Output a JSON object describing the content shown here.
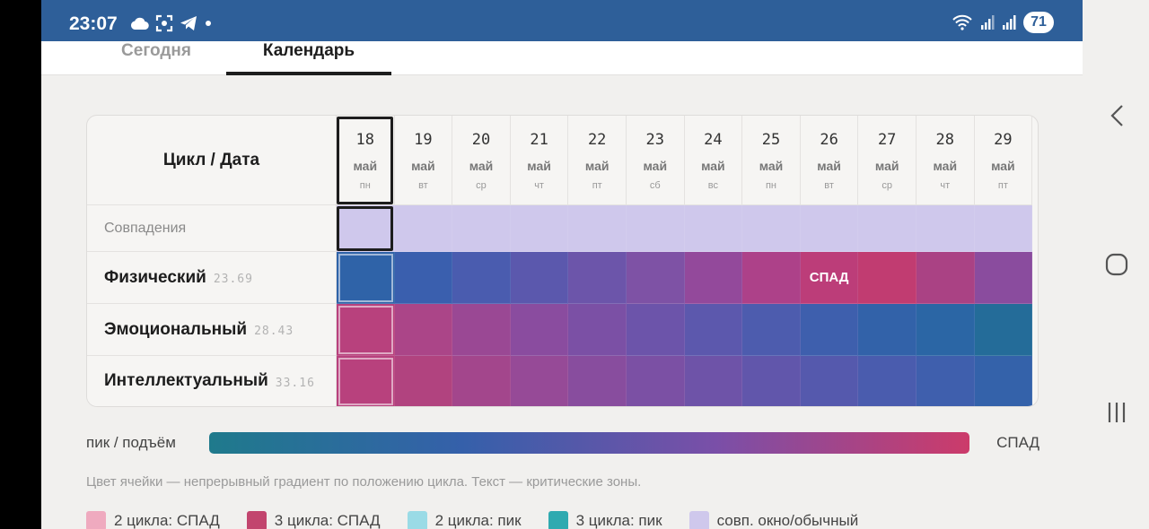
{
  "status_bar": {
    "time": "23:07",
    "battery": "71"
  },
  "tabs": [
    {
      "label": "Сегодня",
      "active": false
    },
    {
      "label": "Календарь",
      "active": true
    }
  ],
  "table": {
    "corner_label": "Цикл / Дата",
    "days": [
      {
        "num": "18",
        "month": "май",
        "dow": "пн",
        "today": true
      },
      {
        "num": "19",
        "month": "май",
        "dow": "вт"
      },
      {
        "num": "20",
        "month": "май",
        "dow": "ср"
      },
      {
        "num": "21",
        "month": "май",
        "dow": "чт"
      },
      {
        "num": "22",
        "month": "май",
        "dow": "пт"
      },
      {
        "num": "23",
        "month": "май",
        "dow": "сб"
      },
      {
        "num": "24",
        "month": "май",
        "dow": "вс"
      },
      {
        "num": "25",
        "month": "май",
        "dow": "пн"
      },
      {
        "num": "26",
        "month": "май",
        "dow": "вт"
      },
      {
        "num": "27",
        "month": "май",
        "dow": "ср"
      },
      {
        "num": "28",
        "month": "май",
        "dow": "чт"
      },
      {
        "num": "29",
        "month": "май",
        "dow": "пт"
      }
    ],
    "rows": [
      {
        "name": "Совпадения",
        "period": "",
        "style": "light",
        "colors": [
          "#cfc8ec",
          "#cfc8ec",
          "#cfc8ec",
          "#cfc8ec",
          "#cfc8ec",
          "#cfc8ec",
          "#cfc8ec",
          "#cfc8ec",
          "#cfc8ec",
          "#cfc8ec",
          "#cfc8ec",
          "#cfc8ec"
        ],
        "labels": [
          "",
          "",
          "",
          "",
          "",
          "",
          "",
          "",
          "",
          "",
          "",
          ""
        ]
      },
      {
        "name": "Физический",
        "period": "23.69",
        "style": "bold",
        "colors": [
          "#2f63a8",
          "#3a5fae",
          "#4a5caf",
          "#5b58ad",
          "#6c55aa",
          "#7e52a5",
          "#93499b",
          "#ad4189",
          "#bc3d79",
          "#c13c71",
          "#aa4284",
          "#8a4c9e"
        ],
        "labels": [
          "",
          "",
          "",
          "",
          "",
          "",
          "",
          "",
          "СПАД",
          "",
          "",
          ""
        ]
      },
      {
        "name": "Эмоциональный",
        "period": "28.43",
        "style": "bold",
        "colors": [
          "#b8417d",
          "#ab4588",
          "#9a4894",
          "#8a4c9f",
          "#7b50a5",
          "#6c54aa",
          "#5c58ad",
          "#4d5cae",
          "#3e5fad",
          "#3262a9",
          "#2b66a5",
          "#246c99"
        ],
        "labels": [
          "",
          "",
          "",
          "",
          "",
          "",
          "",
          "",
          "",
          "",
          "",
          ""
        ]
      },
      {
        "name": "Интеллектуальный",
        "period": "33.16",
        "style": "bold",
        "colors": [
          "#b8417d",
          "#b1437f",
          "#a3468c",
          "#964a97",
          "#884d9e",
          "#7b50a4",
          "#6e53a8",
          "#6156ab",
          "#5559ad",
          "#4a5cae",
          "#3f5fad",
          "#3462aa"
        ],
        "labels": [
          "",
          "",
          "",
          "",
          "",
          "",
          "",
          "",
          "",
          "",
          "",
          ""
        ]
      }
    ]
  },
  "legend": {
    "left": "пик / подъём",
    "right": "СПАД",
    "gradient": [
      "#1f7a8c",
      "#3560aa",
      "#7a4fa8",
      "#cc3b6a"
    ],
    "note": "Цвет ячейки — непрерывный градиент по положению цикла. Текст — критические зоны.",
    "keys": [
      {
        "label": "2 цикла: СПАД",
        "color": "#efaabf"
      },
      {
        "label": "3 цикла: СПАД",
        "color": "#c2456e"
      },
      {
        "label": "2 цикла: пик",
        "color": "#9adbe6"
      },
      {
        "label": "3 цикла: пик",
        "color": "#2faab0"
      },
      {
        "label": "совп. окно/обычный",
        "color": "#cfc8ec"
      }
    ]
  },
  "icons": {
    "status_left": [
      "cloud-icon",
      "screenshot-icon",
      "telegram-icon",
      "dot-icon"
    ],
    "status_right": [
      "wifi-icon",
      "signal-icon",
      "signal-icon"
    ],
    "nav": [
      "back-icon",
      "home-icon",
      "recents-icon"
    ]
  }
}
